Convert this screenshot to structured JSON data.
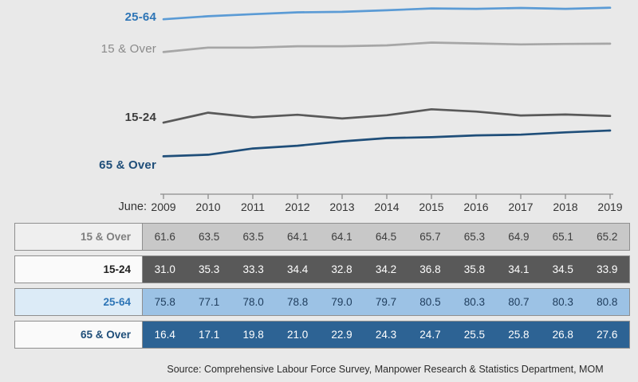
{
  "axis": {
    "june_label": "June:"
  },
  "source_note": "Source: Comprehensive Labour Force Survey, Manpower Research & Statistics Department, MOM",
  "chart_data": {
    "type": "line",
    "title": "",
    "x_axis_label": "June:",
    "x": [
      2009,
      2010,
      2011,
      2012,
      2013,
      2014,
      2015,
      2016,
      2017,
      2018,
      2019
    ],
    "grid": false,
    "legend_position": "left-of-lines",
    "ylim": [
      0,
      100
    ],
    "series": [
      {
        "name": "15 & Over",
        "values": [
          61.6,
          63.5,
          63.5,
          64.1,
          64.1,
          64.5,
          65.7,
          65.3,
          64.9,
          65.1,
          65.2
        ],
        "line_color": "#a6a6a6",
        "chart_label_color": "#8a8a8a",
        "row_bg": "#c8c8c8",
        "row_text": "#3d3d3d",
        "label_bg": "#efefef",
        "label_text": "#7f7f7f"
      },
      {
        "name": "15-24",
        "values": [
          31.0,
          35.3,
          33.3,
          34.4,
          32.8,
          34.2,
          36.8,
          35.8,
          34.1,
          34.5,
          33.9
        ],
        "line_color": "#595959",
        "chart_label_color": "#3d3d3d",
        "row_bg": "#595959",
        "row_text": "#ffffff",
        "label_bg": "#fafafa",
        "label_text": "#1f1f1f"
      },
      {
        "name": "25-64",
        "values": [
          75.8,
          77.1,
          78.0,
          78.8,
          79.0,
          79.7,
          80.5,
          80.3,
          80.7,
          80.3,
          80.8
        ],
        "line_color": "#5b9bd5",
        "chart_label_color": "#2e75b6",
        "row_bg": "#9cc2e5",
        "row_text": "#1e3c5c",
        "label_bg": "#dcebf7",
        "label_text": "#2e75b6"
      },
      {
        "name": "65 & Over",
        "values": [
          16.4,
          17.1,
          19.8,
          21.0,
          22.9,
          24.3,
          24.7,
          25.5,
          25.8,
          26.8,
          27.6
        ],
        "line_color": "#1f4e79",
        "chart_label_color": "#1f4e79",
        "row_bg": "#2d6394",
        "row_text": "#ffffff",
        "label_bg": "#fafafa",
        "label_text": "#1f4e79"
      }
    ],
    "source": "Source: Comprehensive Labour Force Survey, Manpower Research & Statistics Department, MOM"
  }
}
